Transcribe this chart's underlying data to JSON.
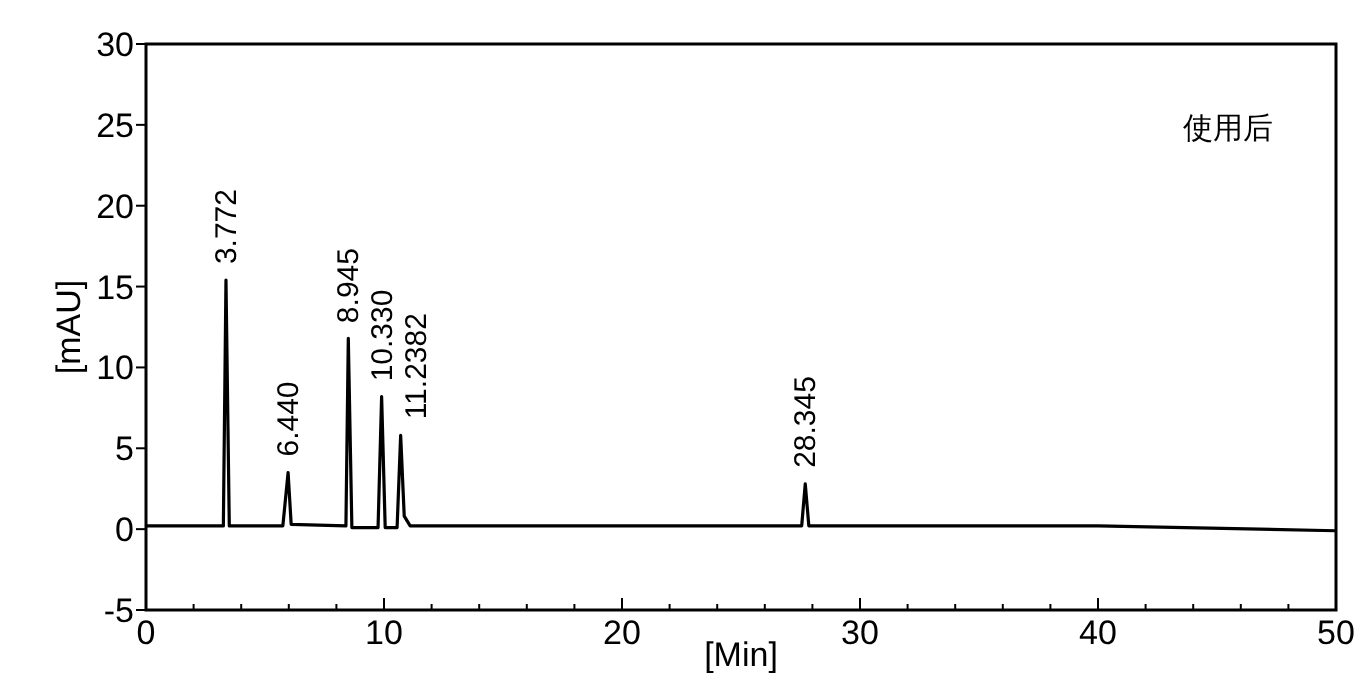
{
  "chart_data": {
    "type": "line",
    "title": "使用后",
    "xlabel": "[Min]",
    "ylabel": "[mAU]",
    "xlim": [
      0,
      50
    ],
    "ylim": [
      -5,
      30
    ],
    "xticks": [
      0,
      10,
      20,
      30,
      40,
      50
    ],
    "yticks": [
      -5,
      0,
      5,
      10,
      15,
      20,
      25,
      30
    ],
    "grid": false,
    "marker": "none",
    "line_style": "solid",
    "series": [
      {
        "color": "#000000",
        "x": [
          0,
          3.25,
          3.36,
          3.5,
          5.75,
          5.97,
          6.1,
          8.4,
          8.5,
          8.65,
          9.75,
          9.9,
          10.05,
          10.55,
          10.7,
          10.85,
          11.1,
          27.55,
          27.7,
          27.85,
          40,
          50
        ],
        "values": [
          0.2,
          0.2,
          15.4,
          0.2,
          0.2,
          3.5,
          0.3,
          0.2,
          11.8,
          0.1,
          0.1,
          8.2,
          0.1,
          0.1,
          5.8,
          0.8,
          0.2,
          0.2,
          2.8,
          0.2,
          0.2,
          -0.1
        ]
      }
    ],
    "annotations": [
      {
        "text": "3.772",
        "x": 3.36,
        "y": 15.4
      },
      {
        "text": "6.440",
        "x": 5.97,
        "y": 3.5
      },
      {
        "text": "8.945",
        "x": 8.5,
        "y": 11.75
      },
      {
        "text": "10.330",
        "x": 9.9,
        "y": 8.15
      },
      {
        "text": "11.2382",
        "x": 10.7,
        "y": 5.8
      },
      {
        "text": "28.345",
        "x": 27.7,
        "y": 2.8
      }
    ]
  }
}
